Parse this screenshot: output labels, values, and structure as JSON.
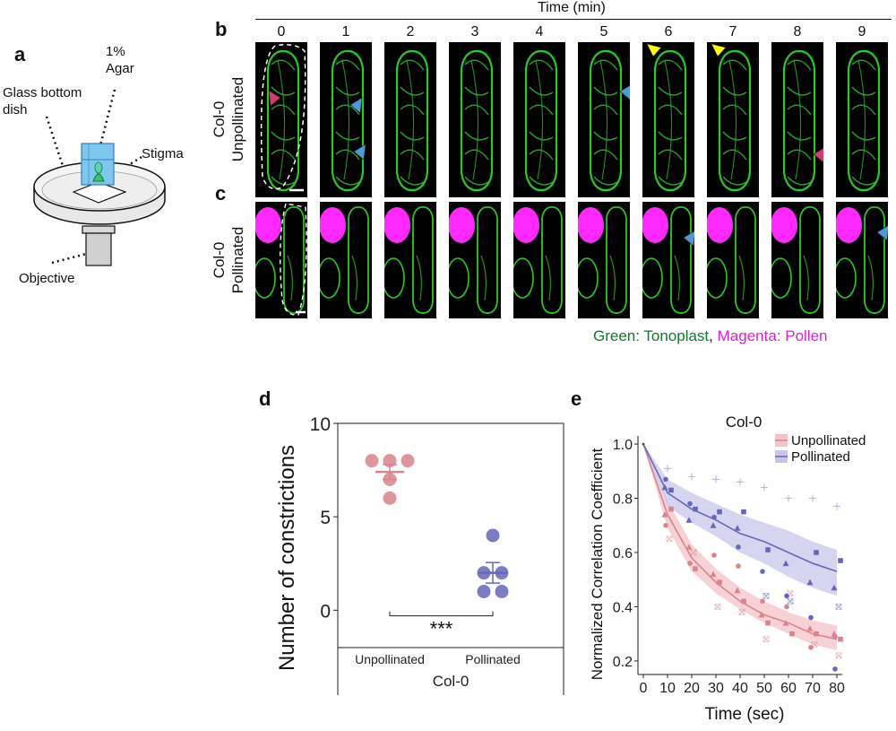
{
  "panel_a": {
    "letter": "a",
    "label_glass": "Glass bottom\ndish",
    "label_agar": "1%\nAgar",
    "label_stigma": "Stigma",
    "label_objective": "Objective"
  },
  "panel_b": {
    "letter": "b",
    "time_title": "Time (min)",
    "time_labels": [
      "0",
      "1",
      "2",
      "3",
      "4",
      "5",
      "6",
      "7",
      "8",
      "9"
    ],
    "row_label_1": "Col-0",
    "row_label_2": "Unpollinated"
  },
  "panel_c": {
    "letter": "c",
    "row_label_1": "Col-0",
    "row_label_2": "Pollinated",
    "caption_green": "Green: Tonoplast",
    "caption_sep": ", ",
    "caption_magenta": "Magenta: Pollen"
  },
  "colors": {
    "green": "#27c827",
    "magenta": "#ff28ff",
    "arrow_blue": "#4c9ad8",
    "arrow_red": "#d63a6e",
    "arrow_yellow": "#ffff00",
    "unpoll": "#d9848c",
    "poll": "#6666bb",
    "caption_green": "#0d7a2c",
    "caption_magenta": "#e020d8"
  },
  "chart_data": [
    {
      "panel": "d",
      "type": "scatter",
      "ylabel": "Number of constrictions",
      "xlabel": "Col-0",
      "categories": [
        "Unpollinated",
        "Pollinated"
      ],
      "ylim": [
        -2,
        10
      ],
      "yticks": [
        0,
        5,
        10
      ],
      "points": {
        "Unpollinated": [
          8,
          8,
          8,
          7,
          6
        ],
        "Pollinated": [
          4,
          2,
          2,
          1,
          1
        ]
      },
      "means": [
        7.4,
        2.0
      ],
      "sem": [
        0.4,
        0.55
      ],
      "significance": "***"
    },
    {
      "panel": "e",
      "type": "line",
      "title": "Col-0",
      "xlabel": "Time (sec)",
      "ylabel": "Normalized Correlation Coefficient",
      "x": [
        0,
        10,
        20,
        30,
        40,
        50,
        60,
        70,
        80
      ],
      "xlim": [
        0,
        80
      ],
      "ylim": [
        0.15,
        1.03
      ],
      "yticks": [
        0.2,
        0.4,
        0.6,
        0.8,
        1.0
      ],
      "ytick_labels": [
        "0.2",
        "0.4",
        "0.6",
        "0.8",
        "1.0"
      ],
      "legend": "top-right",
      "series": [
        {
          "name": "Unpollinated",
          "mean": [
            1.0,
            0.74,
            0.58,
            0.49,
            0.42,
            0.37,
            0.34,
            0.3,
            0.28
          ],
          "ci_low": [
            1.0,
            0.69,
            0.53,
            0.45,
            0.39,
            0.34,
            0.3,
            0.26,
            0.24
          ],
          "ci_high": [
            1.0,
            0.79,
            0.63,
            0.54,
            0.47,
            0.42,
            0.38,
            0.35,
            0.33
          ],
          "points": [
            [
              10,
              0.65,
              "x"
            ],
            [
              10,
              0.7,
              "o"
            ],
            [
              10,
              0.74,
              "t"
            ],
            [
              10,
              0.76,
              "s"
            ],
            [
              20,
              0.56,
              "o"
            ],
            [
              20,
              0.54,
              "s"
            ],
            [
              20,
              0.6,
              "x"
            ],
            [
              20,
              0.62,
              "t"
            ],
            [
              30,
              0.4,
              "x"
            ],
            [
              30,
              0.49,
              "s"
            ],
            [
              30,
              0.52,
              "t"
            ],
            [
              30,
              0.59,
              "o"
            ],
            [
              40,
              0.38,
              "x"
            ],
            [
              40,
              0.42,
              "s"
            ],
            [
              40,
              0.46,
              "t"
            ],
            [
              40,
              0.55,
              "o"
            ],
            [
              50,
              0.28,
              "x"
            ],
            [
              50,
              0.34,
              "s"
            ],
            [
              50,
              0.37,
              "t"
            ],
            [
              50,
              0.42,
              "o"
            ],
            [
              60,
              0.3,
              "s"
            ],
            [
              60,
              0.34,
              "t"
            ],
            [
              60,
              0.4,
              "o"
            ],
            [
              60,
              0.45,
              "x"
            ],
            [
              70,
              0.26,
              "x"
            ],
            [
              70,
              0.3,
              "s"
            ],
            [
              70,
              0.32,
              "t"
            ],
            [
              70,
              0.25,
              "o"
            ],
            [
              80,
              0.22,
              "x"
            ],
            [
              80,
              0.28,
              "s"
            ],
            [
              80,
              0.3,
              "t"
            ],
            [
              80,
              0.29,
              "o"
            ]
          ]
        },
        {
          "name": "Pollinated",
          "mean": [
            1.0,
            0.82,
            0.76,
            0.72,
            0.67,
            0.64,
            0.6,
            0.56,
            0.53
          ],
          "ci_low": [
            1.0,
            0.77,
            0.71,
            0.66,
            0.6,
            0.56,
            0.51,
            0.47,
            0.44
          ],
          "ci_high": [
            1.0,
            0.87,
            0.82,
            0.78,
            0.74,
            0.71,
            0.68,
            0.64,
            0.61
          ],
          "points": [
            [
              10,
              0.91,
              "+"
            ],
            [
              10,
              0.87,
              "o"
            ],
            [
              10,
              0.84,
              "t"
            ],
            [
              10,
              0.83,
              "s"
            ],
            [
              20,
              0.88,
              "+"
            ],
            [
              20,
              0.78,
              "o"
            ],
            [
              20,
              0.76,
              "s"
            ],
            [
              20,
              0.72,
              "t"
            ],
            [
              30,
              0.87,
              "+"
            ],
            [
              30,
              0.75,
              "s"
            ],
            [
              30,
              0.73,
              "o"
            ],
            [
              30,
              0.7,
              "t"
            ],
            [
              40,
              0.86,
              "+"
            ],
            [
              40,
              0.75,
              "s"
            ],
            [
              40,
              0.69,
              "t"
            ],
            [
              40,
              0.62,
              "o"
            ],
            [
              50,
              0.84,
              "+"
            ],
            [
              50,
              0.61,
              "s"
            ],
            [
              50,
              0.53,
              "o"
            ],
            [
              50,
              0.44,
              "x"
            ],
            [
              60,
              0.8,
              "+"
            ],
            [
              60,
              0.56,
              "t"
            ],
            [
              60,
              0.44,
              "o"
            ],
            [
              60,
              0.42,
              "x"
            ],
            [
              70,
              0.8,
              "+"
            ],
            [
              70,
              0.6,
              "s"
            ],
            [
              70,
              0.49,
              "t"
            ],
            [
              70,
              0.36,
              "o"
            ],
            [
              80,
              0.77,
              "+"
            ],
            [
              80,
              0.57,
              "s"
            ],
            [
              80,
              0.47,
              "t"
            ],
            [
              80,
              0.17,
              "o"
            ],
            [
              80,
              0.4,
              "x"
            ]
          ]
        }
      ]
    }
  ]
}
